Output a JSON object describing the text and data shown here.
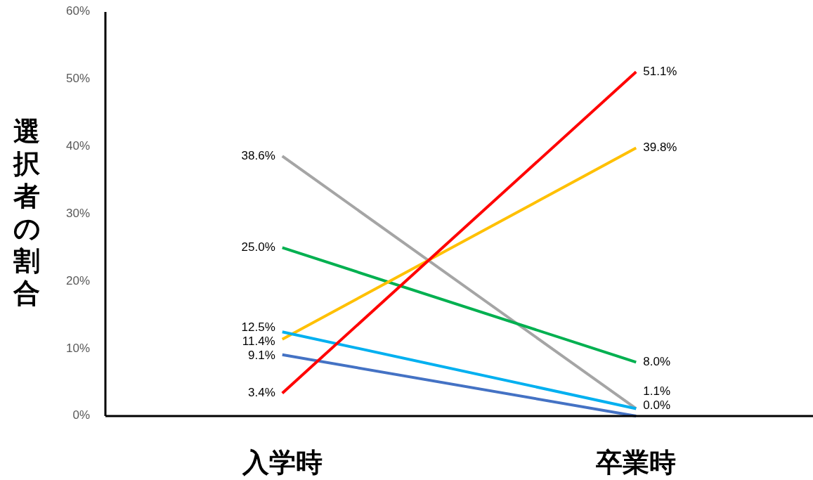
{
  "chart_data": {
    "type": "line",
    "ylabel": "選択者の割合",
    "categories": [
      "入学時",
      "卒業時"
    ],
    "ylim": [
      0,
      60
    ],
    "yticks": [
      {
        "value": 0,
        "label": "0%"
      },
      {
        "value": 10,
        "label": "10%"
      },
      {
        "value": 20,
        "label": "20%"
      },
      {
        "value": 30,
        "label": "30%"
      },
      {
        "value": 40,
        "label": "40%"
      },
      {
        "value": 50,
        "label": "50%"
      },
      {
        "value": 60,
        "label": "60%"
      }
    ],
    "series": [
      {
        "color": "#a5a5a5",
        "values": [
          38.6,
          1.1
        ],
        "value_labels": [
          "38.6%",
          null
        ]
      },
      {
        "color": "#00b050",
        "values": [
          25.0,
          8.0
        ],
        "value_labels": [
          "25.0%",
          "8.0%"
        ]
      },
      {
        "color": "#ffc000",
        "values": [
          11.4,
          39.8
        ],
        "value_labels": [
          "11.4%",
          "39.8%"
        ]
      },
      {
        "color": "#00b0f0",
        "values": [
          12.5,
          1.1
        ],
        "value_labels": [
          "12.5%",
          "1.1%"
        ]
      },
      {
        "color": "#4472c4",
        "values": [
          9.1,
          0.0
        ],
        "value_labels": [
          "9.1%",
          "0.0%"
        ]
      },
      {
        "color": "#ff0000",
        "values": [
          3.4,
          51.1
        ],
        "value_labels": [
          "3.4%",
          "51.1%"
        ]
      }
    ],
    "grid": false,
    "marker": "none",
    "line_style": "solid"
  }
}
